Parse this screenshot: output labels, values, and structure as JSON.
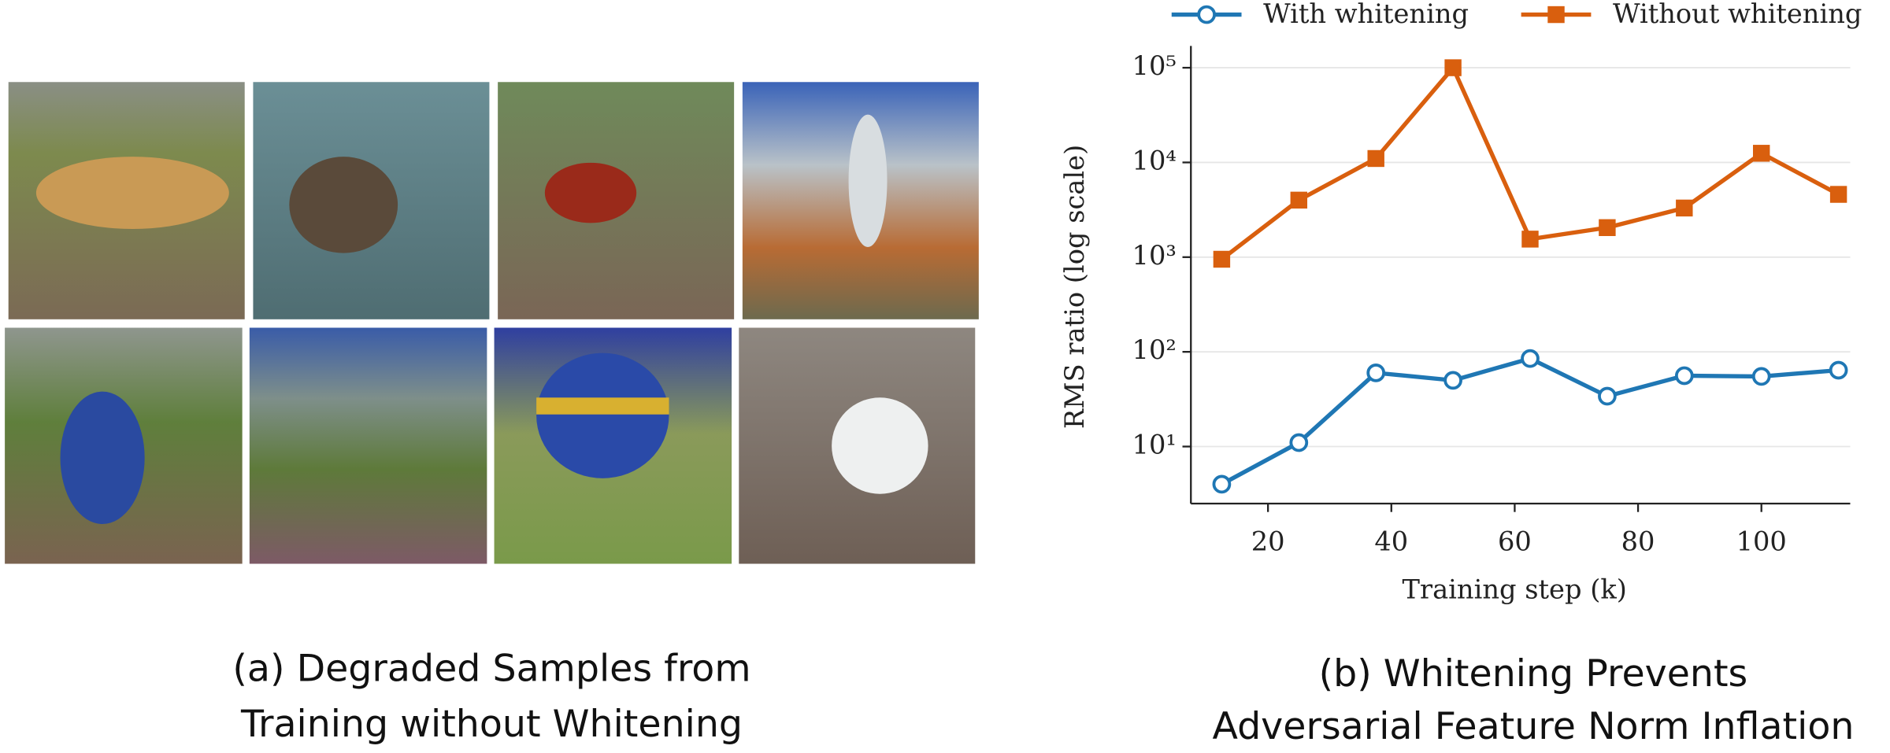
{
  "captions": {
    "a": [
      "(a)  Degraded Samples from",
      "Training without Whitening"
    ],
    "b": [
      "(b) Whitening Prevents",
      "Adversarial Feature Norm Inflation"
    ]
  },
  "chart_data": {
    "type": "line",
    "xlabel": "Training step (k)",
    "ylabel": "RMS ratio (log scale)",
    "log_y": true,
    "grid": "y",
    "legend": "top",
    "x": [
      12.5,
      25,
      37.5,
      50,
      62.5,
      75,
      87.5,
      100,
      112.5
    ],
    "series": [
      {
        "name": "With whitening",
        "color": "#1f77b4",
        "marker": "circle",
        "values": [
          4,
          11,
          60,
          50,
          85,
          34,
          56,
          55,
          64
        ]
      },
      {
        "name": "Without whitening",
        "color": "#d95f0e",
        "marker": "square",
        "values": [
          950,
          4000,
          11000,
          100000,
          1550,
          2050,
          3300,
          12500,
          4600
        ]
      }
    ],
    "xlim": [
      7.5,
      114.4
    ],
    "ylim": [
      2.5,
      170000
    ],
    "xticks": [
      20,
      40,
      60,
      80,
      100
    ],
    "yticks": [
      {
        "value": 10,
        "label": "10¹"
      },
      {
        "value": 100,
        "label": "10²"
      },
      {
        "value": 1000,
        "label": "10³"
      },
      {
        "value": 10000,
        "label": "10⁴"
      },
      {
        "value": 100000,
        "label": "10⁵"
      }
    ]
  }
}
